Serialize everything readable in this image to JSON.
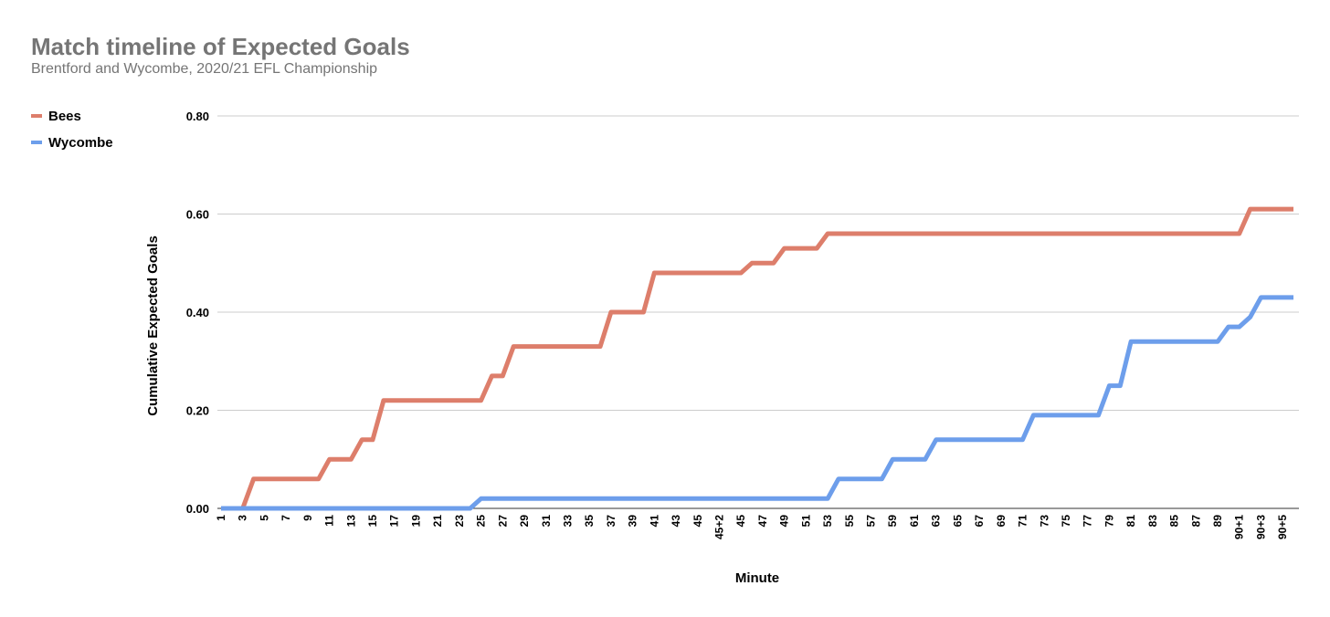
{
  "chart_data": {
    "type": "line",
    "title": "Match timeline of Expected Goals",
    "subtitle": "Brentford and Wycombe, 2020/21 EFL Championship",
    "x_label": "Minute",
    "y_label": "Cumulative Expected Goals",
    "categories": [
      "1",
      null,
      "3",
      null,
      "5",
      null,
      "7",
      null,
      "9",
      null,
      "11",
      null,
      "13",
      null,
      "15",
      null,
      "17",
      null,
      "19",
      null,
      "21",
      null,
      "23",
      null,
      "25",
      null,
      "27",
      null,
      "29",
      null,
      "31",
      null,
      "33",
      null,
      "35",
      null,
      "37",
      null,
      "39",
      null,
      "41",
      null,
      "43",
      null,
      "45",
      null,
      "45+2",
      null,
      "45",
      null,
      "47",
      null,
      "49",
      null,
      "51",
      null,
      "53",
      null,
      "55",
      null,
      "57",
      null,
      "59",
      null,
      "61",
      null,
      "63",
      null,
      "65",
      null,
      "67",
      null,
      "69",
      null,
      "71",
      null,
      "73",
      null,
      "75",
      null,
      "77",
      null,
      "79",
      null,
      "81",
      null,
      "83",
      null,
      "85",
      null,
      "87",
      null,
      "89",
      null,
      "90+1",
      null,
      "90+3",
      null,
      "90+5",
      null
    ],
    "series": [
      {
        "name": "Bees",
        "color": "#dd7e6b",
        "values": [
          0,
          0,
          0,
          0.06,
          0.06,
          0.06,
          0.06,
          0.06,
          0.06,
          0.06,
          0.1,
          0.1,
          0.1,
          0.14,
          0.14,
          0.22,
          0.22,
          0.22,
          0.22,
          0.22,
          0.22,
          0.22,
          0.22,
          0.22,
          0.22,
          0.27,
          0.27,
          0.33,
          0.33,
          0.33,
          0.33,
          0.33,
          0.33,
          0.33,
          0.33,
          0.33,
          0.4,
          0.4,
          0.4,
          0.4,
          0.48,
          0.48,
          0.48,
          0.48,
          0.48,
          0.48,
          0.48,
          0.48,
          0.48,
          0.5,
          0.5,
          0.5,
          0.53,
          0.53,
          0.53,
          0.53,
          0.56,
          0.56,
          0.56,
          0.56,
          0.56,
          0.56,
          0.56,
          0.56,
          0.56,
          0.56,
          0.56,
          0.56,
          0.56,
          0.56,
          0.56,
          0.56,
          0.56,
          0.56,
          0.56,
          0.56,
          0.56,
          0.56,
          0.56,
          0.56,
          0.56,
          0.56,
          0.56,
          0.56,
          0.56,
          0.56,
          0.56,
          0.56,
          0.56,
          0.56,
          0.56,
          0.56,
          0.56,
          0.56,
          0.56,
          0.61,
          0.61,
          0.61,
          0.61,
          0.61
        ]
      },
      {
        "name": "Wycombe",
        "color": "#6d9eeb",
        "values": [
          0,
          0,
          0,
          0,
          0,
          0,
          0,
          0,
          0,
          0,
          0,
          0,
          0,
          0,
          0,
          0,
          0,
          0,
          0,
          0,
          0,
          0,
          0,
          0,
          0.02,
          0.02,
          0.02,
          0.02,
          0.02,
          0.02,
          0.02,
          0.02,
          0.02,
          0.02,
          0.02,
          0.02,
          0.02,
          0.02,
          0.02,
          0.02,
          0.02,
          0.02,
          0.02,
          0.02,
          0.02,
          0.02,
          0.02,
          0.02,
          0.02,
          0.02,
          0.02,
          0.02,
          0.02,
          0.02,
          0.02,
          0.02,
          0.02,
          0.06,
          0.06,
          0.06,
          0.06,
          0.06,
          0.1,
          0.1,
          0.1,
          0.1,
          0.14,
          0.14,
          0.14,
          0.14,
          0.14,
          0.14,
          0.14,
          0.14,
          0.14,
          0.19,
          0.19,
          0.19,
          0.19,
          0.19,
          0.19,
          0.19,
          0.25,
          0.25,
          0.34,
          0.34,
          0.34,
          0.34,
          0.34,
          0.34,
          0.34,
          0.34,
          0.34,
          0.37,
          0.37,
          0.39,
          0.43,
          0.43,
          0.43,
          0.43
        ]
      }
    ],
    "ylim": [
      0,
      0.8
    ],
    "yticks": [
      {
        "value": 0,
        "label": "0.00"
      },
      {
        "value": 0.2,
        "label": "0.20"
      },
      {
        "value": 0.4,
        "label": "0.40"
      },
      {
        "value": 0.6,
        "label": "0.60"
      },
      {
        "value": 0.8,
        "label": "0.80"
      }
    ],
    "grid": true,
    "legend": "left"
  }
}
